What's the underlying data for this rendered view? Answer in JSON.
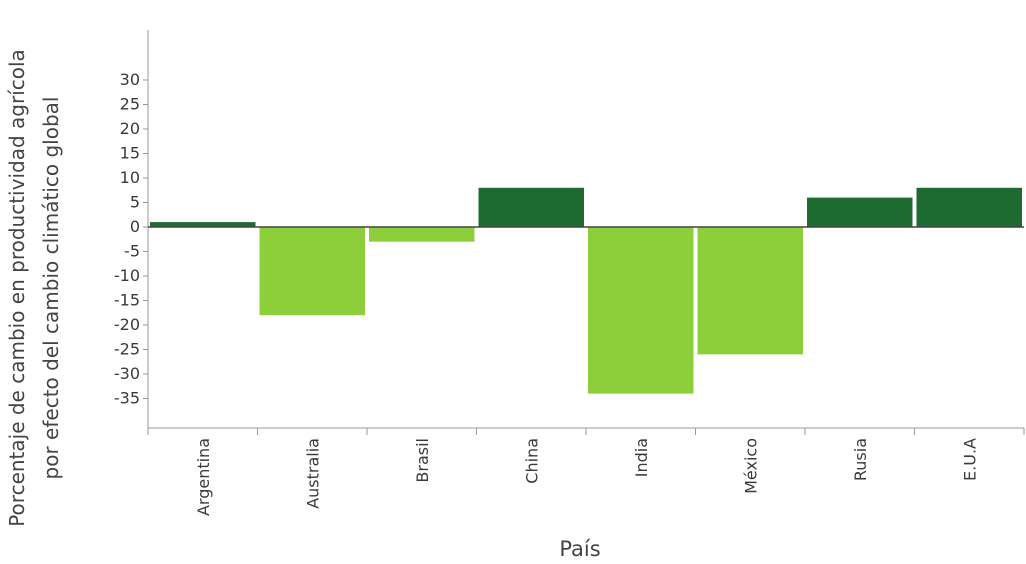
{
  "chart_data": {
    "type": "bar",
    "categories": [
      "Argentina",
      "Australia",
      "Brasil",
      "China",
      "India",
      "México",
      "Rusia",
      "E.U.A"
    ],
    "values": [
      1,
      -18,
      -3,
      8,
      -34,
      -26,
      6,
      8
    ],
    "xlabel": "País",
    "ylabel_lines": [
      "Porcentaje de cambio en productividad agrícola",
      "por efecto del cambio climático global"
    ],
    "yticks": [
      30,
      25,
      20,
      15,
      10,
      5,
      0,
      -5,
      -10,
      -15,
      -20,
      -25,
      -30,
      -35
    ],
    "ylim": [
      -40,
      40
    ],
    "colors": {
      "positive": "#1e6b32",
      "negative": "#8ccf3a"
    },
    "grid": false,
    "legend": "none"
  }
}
